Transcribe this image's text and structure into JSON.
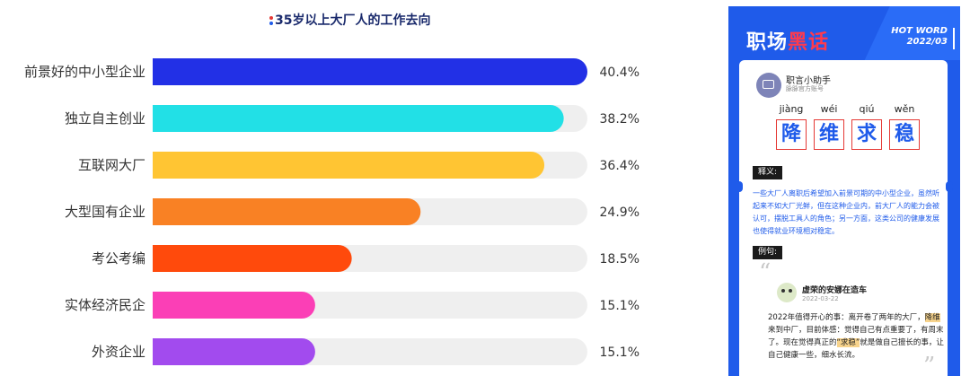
{
  "chart_data": {
    "type": "bar",
    "orientation": "horizontal",
    "title": "35岁以上大厂人的工作去向",
    "categories": [
      "前景好的中小型企业",
      "独立自主创业",
      "互联网大厂",
      "大型国有企业",
      "考公考编",
      "实体经济民企",
      "外资企业"
    ],
    "values": [
      40.4,
      38.2,
      36.4,
      24.9,
      18.5,
      15.1,
      15.1
    ],
    "value_labels": [
      "40.4%",
      "38.2%",
      "36.4%",
      "24.9%",
      "18.5%",
      "15.1%",
      "15.1%"
    ],
    "xlim": [
      0,
      40.4
    ],
    "grid": false,
    "bar_colors": [
      "#2230e6",
      "#22e0e6",
      "#ffc533",
      "#f98124",
      "#ff4a0c",
      "#fb3fb6",
      "#a24bee"
    ],
    "track_color": "#efefef"
  },
  "card": {
    "brand_part1": "职场",
    "brand_part2": "黑话",
    "hot_word_line1": "HOT WORD",
    "hot_word_line2": "2022/03",
    "author_name": "职言小助手",
    "author_sub": "脉脉官方账号",
    "pinyin": [
      "jiàng",
      "wéi",
      "qiú",
      "wěn"
    ],
    "chars": [
      "降",
      "维",
      "求",
      "稳"
    ],
    "definition_tag": "释义:",
    "definition": "一些大厂人离职后希望加入前景可期的中小型企业，虽然听起来不如大厂光鲜，但在这种企业内，前大厂人的能力会被认可，摆脱工具人的角色；另一方面，这类公司的健康发展也使得就业环境相对稳定。",
    "example_tag": "例句:",
    "example_user": "虚荣的安娜在造车",
    "example_date": "2022-03-22",
    "example_text_1": "2022年值得开心的事：离开卷了两年的大厂，",
    "example_hl_1": "降维",
    "example_text_2": "来到中厂，目前体感：觉得自己有点重要了，有周末了。现在觉得真正的",
    "example_hl_2": "“求稳”",
    "example_text_3": "就是做自己擅长的事，让自己健康一些，细水长流。",
    "accent_color": "#1f5bea"
  }
}
